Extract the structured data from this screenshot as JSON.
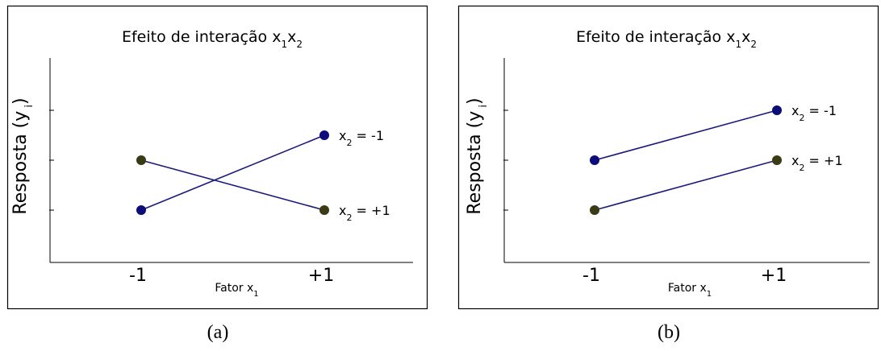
{
  "colors": {
    "line": "#1a1a7a",
    "point_blue": "#0c0c7a",
    "point_olive": "#3a3a14",
    "frame": "#000000"
  },
  "chart_data": [
    {
      "type": "line",
      "panel_caption": "(a)",
      "title": {
        "main": "Efeito de interação x",
        "s1": "1",
        "mid": "x",
        "s2": "2"
      },
      "xlabel": {
        "main": "Fator x",
        "sub": "1"
      },
      "ylabel": {
        "main": "Resposta (y",
        "sub": "i",
        "close": ")"
      },
      "categories": [
        "-1",
        "+1"
      ],
      "ylim": [
        0,
        4
      ],
      "series": [
        {
          "label_main": "x",
          "label_sub": "2",
          "label_tail": " = -1",
          "values": [
            1,
            2.5
          ],
          "point_color": "#0c0c7a"
        },
        {
          "label_main": "x",
          "label_sub": "2",
          "label_tail": " = +1",
          "values": [
            2,
            1
          ],
          "point_color": "#3a3a14"
        }
      ]
    },
    {
      "type": "line",
      "panel_caption": "(b)",
      "title": {
        "main": "Efeito de interação x",
        "s1": "1",
        "mid": "x",
        "s2": "2"
      },
      "xlabel": {
        "main": "Fator x",
        "sub": "1"
      },
      "ylabel": {
        "main": "Resposta (y",
        "sub": "i",
        "close": ")"
      },
      "categories": [
        "-1",
        "+1"
      ],
      "ylim": [
        0,
        4
      ],
      "series": [
        {
          "label_main": "x",
          "label_sub": "2",
          "label_tail": " = -1",
          "values": [
            2,
            3
          ],
          "point_color": "#0c0c7a"
        },
        {
          "label_main": "x",
          "label_sub": "2",
          "label_tail": " = +1",
          "values": [
            1,
            2
          ],
          "point_color": "#3a3a14"
        }
      ]
    }
  ]
}
